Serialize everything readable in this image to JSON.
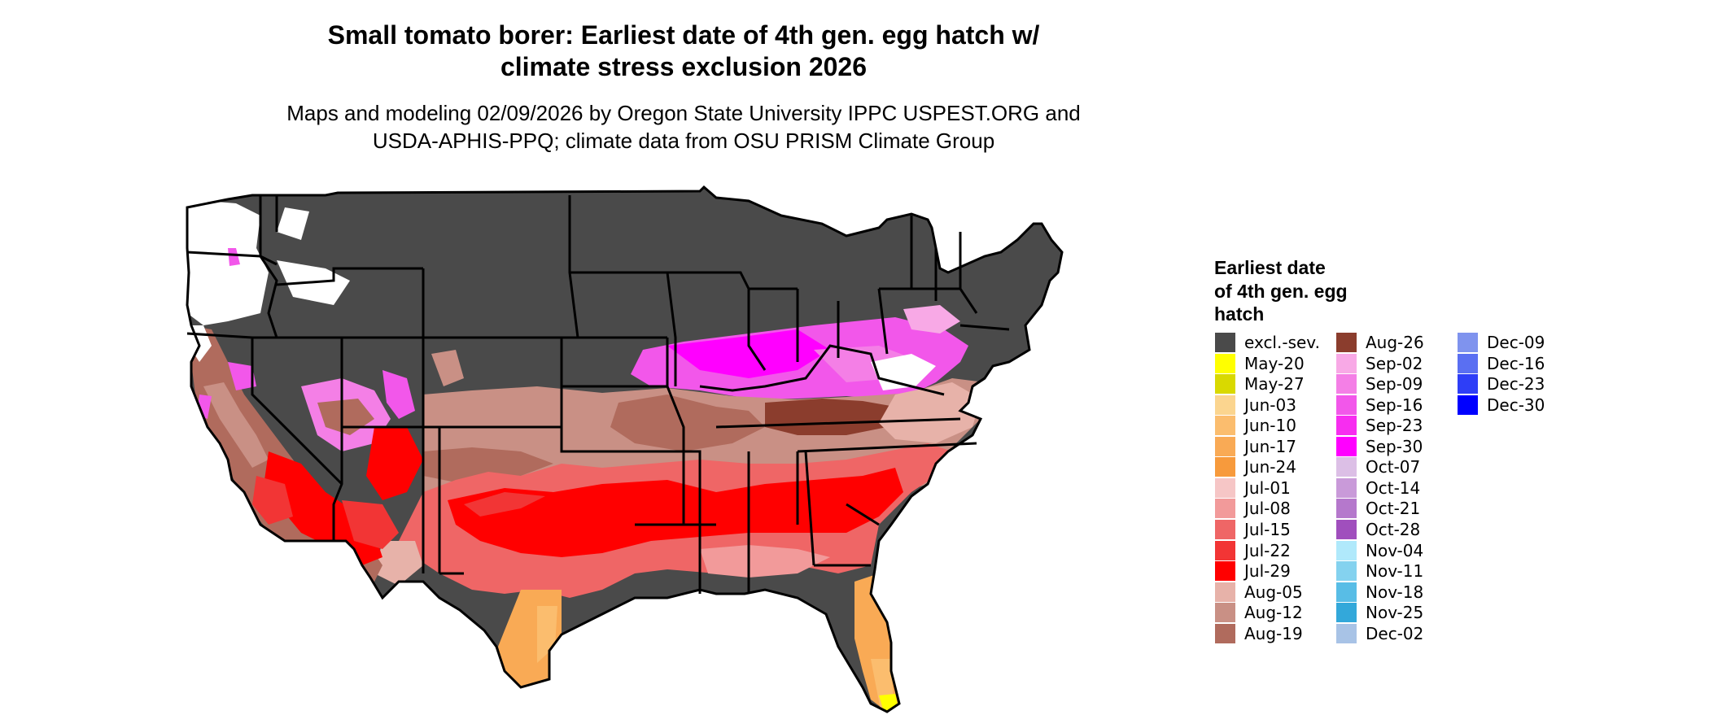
{
  "title_lines": [
    "Small tomato borer: Earliest date of 4th gen. egg hatch w/",
    "climate stress exclusion 2026"
  ],
  "subtitle_lines": [
    "Maps and modeling 02/09/2026 by Oregon State University IPPC USPEST.ORG and",
    "USDA-APHIS-PPQ; climate data from OSU PRISM Climate Group"
  ],
  "legend": {
    "title_lines": [
      "Earliest date",
      "of 4th gen. egg",
      "hatch"
    ],
    "items": [
      {
        "label": "excl.-sev.",
        "color": "#4a4a4a"
      },
      {
        "label": "May-20",
        "color": "#ffff00"
      },
      {
        "label": "May-27",
        "color": "#d9d900"
      },
      {
        "label": "Jun-03",
        "color": "#fbd58f"
      },
      {
        "label": "Jun-10",
        "color": "#fbbd6e"
      },
      {
        "label": "Jun-17",
        "color": "#f9aa55"
      },
      {
        "label": "Jun-24",
        "color": "#f79a3c"
      },
      {
        "label": "Jul-01",
        "color": "#f6c6c6"
      },
      {
        "label": "Jul-08",
        "color": "#f29a9a"
      },
      {
        "label": "Jul-15",
        "color": "#ef6666"
      },
      {
        "label": "Jul-22",
        "color": "#f23535"
      },
      {
        "label": "Jul-29",
        "color": "#ff0000"
      },
      {
        "label": "Aug-05",
        "color": "#e7b2a9"
      },
      {
        "label": "Aug-12",
        "color": "#c99085"
      },
      {
        "label": "Aug-19",
        "color": "#b06b5d"
      },
      {
        "label": "Aug-26",
        "color": "#8b3d2d"
      },
      {
        "label": "Sep-02",
        "color": "#f8a9e6"
      },
      {
        "label": "Sep-09",
        "color": "#f47fe6"
      },
      {
        "label": "Sep-16",
        "color": "#f257ea"
      },
      {
        "label": "Sep-23",
        "color": "#f72df0"
      },
      {
        "label": "Sep-30",
        "color": "#ff00ff"
      },
      {
        "label": "Oct-07",
        "color": "#dcbfe6"
      },
      {
        "label": "Oct-14",
        "color": "#c99ad9"
      },
      {
        "label": "Oct-21",
        "color": "#b578cc"
      },
      {
        "label": "Oct-28",
        "color": "#a04fbd"
      },
      {
        "label": "Nov-04",
        "color": "#b0e9fb"
      },
      {
        "label": "Nov-11",
        "color": "#84d2ef"
      },
      {
        "label": "Nov-18",
        "color": "#58bde6"
      },
      {
        "label": "Nov-25",
        "color": "#33a8da"
      },
      {
        "label": "Dec-02",
        "color": "#a8c3e6"
      },
      {
        "label": "Dec-09",
        "color": "#7f93ee"
      },
      {
        "label": "Dec-16",
        "color": "#5a6ff2"
      },
      {
        "label": "Dec-23",
        "color": "#2e3ef7"
      },
      {
        "label": "Dec-30",
        "color": "#0000ff"
      }
    ]
  }
}
